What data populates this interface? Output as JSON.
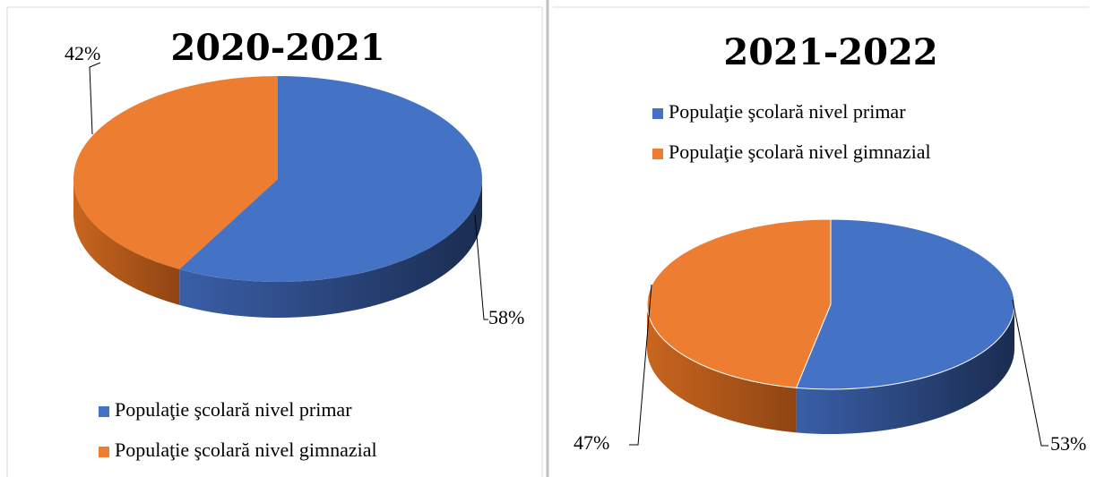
{
  "chart_data": [
    {
      "type": "pie",
      "title": "2020-2021",
      "categories": [
        "Populaţie şcolară nivel primar",
        "Populaţie şcolară nivel gimnazial"
      ],
      "values": [
        58,
        42
      ],
      "value_labels": [
        "58%",
        "42%"
      ],
      "colors": [
        "#4472c4",
        "#ed7d31"
      ],
      "legend": "bottom"
    },
    {
      "type": "pie",
      "title": "2021-2022",
      "categories": [
        "Populaţie şcolară nivel primar",
        "Populaţie şcolară nivel gimnazial"
      ],
      "values": [
        53,
        47
      ],
      "value_labels": [
        "53%",
        "47%"
      ],
      "colors": [
        "#4472c4",
        "#ed7d31"
      ],
      "legend": "top"
    }
  ]
}
